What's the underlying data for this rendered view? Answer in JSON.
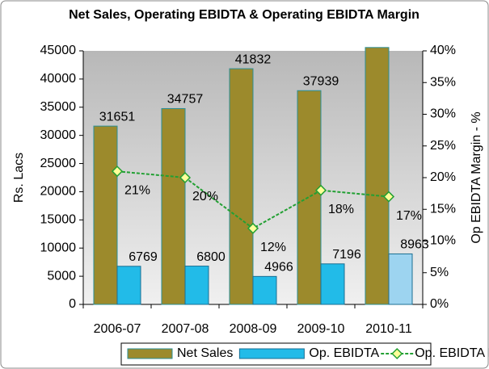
{
  "chart_data": {
    "type": "bar-line",
    "title": "Net Sales, Operating EBIDTA & Operating EBIDTA Margin",
    "y_label": "Rs. Lacs",
    "y2_label": "Op EBIDTA Margin - %",
    "categories": [
      "2006-07",
      "2007-08",
      "2008-09",
      "2009-10",
      "2010-11"
    ],
    "series": [
      {
        "name": "Net Sales",
        "type": "bar",
        "color": "#9c8a2c",
        "values": [
          31651,
          34757,
          41832,
          37939,
          45600
        ],
        "value_labels": [
          "31651",
          "34757",
          "41832",
          "37939",
          null
        ]
      },
      {
        "name": "Op. EBIDTA",
        "type": "bar",
        "color": "#22bbe8",
        "point_colors": [
          "#22bbe8",
          "#22bbe8",
          "#22bbe8",
          "#22bbe8",
          "#9dd4f0"
        ],
        "values": [
          6769,
          6800,
          4966,
          7196,
          8963
        ]
      },
      {
        "name": "Op. EBIDTA Margin",
        "type": "line",
        "axis": "y2",
        "color": "#22a033",
        "values": [
          21,
          20,
          12,
          18,
          17
        ],
        "value_labels": [
          "21%",
          "20%",
          "12%",
          "18%",
          "17%"
        ]
      }
    ],
    "ylim": [
      0,
      45000
    ],
    "yticks": [
      0,
      5000,
      10000,
      15000,
      20000,
      25000,
      30000,
      35000,
      40000,
      45000
    ],
    "y2lim": [
      0,
      40
    ],
    "y2ticks": [
      {
        "value": 0,
        "label": "0%"
      },
      {
        "value": 5,
        "label": "5%"
      },
      {
        "value": 10,
        "label": "10%"
      },
      {
        "value": 15,
        "label": "15%"
      },
      {
        "value": 20,
        "label": "20%"
      },
      {
        "value": 25,
        "label": "25%"
      },
      {
        "value": 30,
        "label": "30%"
      },
      {
        "value": 35,
        "label": "35%"
      },
      {
        "value": 40,
        "label": "40%"
      }
    ],
    "legend": "bottom"
  }
}
